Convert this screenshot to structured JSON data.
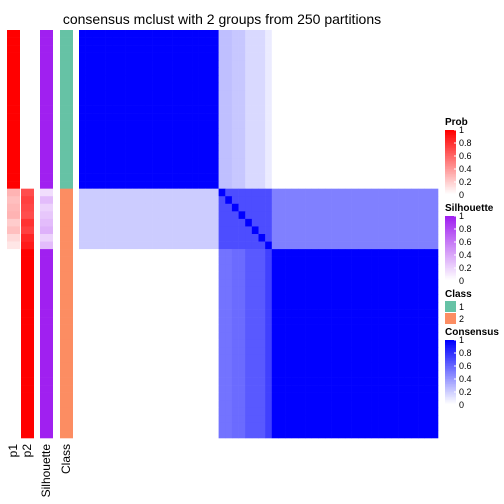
{
  "chart_data": {
    "type": "heatmap",
    "title": "consensus mclust with 2 groups from 250 partitions",
    "annotation_labels": [
      "p1",
      "p2",
      "Silhouette",
      "Class"
    ],
    "colors": {
      "prob_high": "#ff0000",
      "silhouette_high": "#a020f0",
      "class_1": "#66c2a5",
      "class_2": "#fc8d62",
      "consensus_high": "#0000ff"
    },
    "samples": {
      "count": 54,
      "note_order": "samples ordered top-to-bottom"
    },
    "annotations": {
      "p1": [
        1,
        1,
        1,
        1,
        1,
        1,
        1,
        1,
        1,
        1,
        1,
        1,
        1,
        1,
        1,
        1,
        1,
        1,
        1,
        1,
        1,
        0.3,
        0.25,
        0.28,
        0.3,
        0.2,
        0.25,
        0.15,
        0.1,
        0,
        0,
        0,
        0,
        0,
        0,
        0,
        0,
        0,
        0,
        0,
        0,
        0,
        0,
        0,
        0,
        0,
        0,
        0,
        0,
        0,
        0,
        0,
        0,
        0
      ],
      "p2": [
        0,
        0,
        0,
        0,
        0,
        0,
        0,
        0,
        0,
        0,
        0,
        0,
        0,
        0,
        0,
        0,
        0,
        0,
        0,
        0,
        0,
        0.7,
        0.75,
        0.72,
        0.7,
        0.8,
        0.75,
        0.85,
        0.9,
        1,
        1,
        1,
        1,
        1,
        1,
        1,
        1,
        1,
        1,
        1,
        1,
        1,
        1,
        1,
        1,
        1,
        1,
        1,
        1,
        1,
        1,
        1,
        1,
        1
      ],
      "silhouette": [
        1,
        1,
        1,
        1,
        1,
        1,
        1,
        1,
        1,
        1,
        1,
        1,
        1,
        1,
        1,
        1,
        1,
        1,
        1,
        1,
        1,
        0.15,
        0.3,
        0.2,
        0.25,
        0.3,
        0.35,
        0.2,
        0.3,
        1,
        1,
        1,
        1,
        1,
        1,
        1,
        1,
        1,
        1,
        1,
        1,
        1,
        1,
        1,
        1,
        1,
        1,
        1,
        1,
        1,
        1,
        1,
        1,
        1
      ],
      "class": [
        1,
        1,
        1,
        1,
        1,
        1,
        1,
        1,
        1,
        1,
        1,
        1,
        1,
        1,
        1,
        1,
        1,
        1,
        1,
        1,
        1,
        2,
        2,
        2,
        2,
        2,
        2,
        2,
        2,
        2,
        2,
        2,
        2,
        2,
        2,
        2,
        2,
        2,
        2,
        2,
        2,
        2,
        2,
        2,
        2,
        2,
        2,
        2,
        2,
        2,
        2,
        2,
        2,
        2
      ]
    },
    "consensus_blocks": [
      {
        "rows": [
          0,
          20
        ],
        "cols": [
          0,
          20
        ],
        "value": 1
      },
      {
        "rows": [
          0,
          20
        ],
        "cols": [
          21,
          22
        ],
        "value": 0.25
      },
      {
        "rows": [
          0,
          20
        ],
        "cols": [
          23,
          24
        ],
        "value": 0.22
      },
      {
        "rows": [
          0,
          20
        ],
        "cols": [
          25,
          27
        ],
        "value": 0.15
      },
      {
        "rows": [
          0,
          20
        ],
        "cols": [
          28,
          28
        ],
        "value": 0.08
      },
      {
        "rows": [
          21,
          28
        ],
        "cols": [
          0,
          20
        ],
        "value": 0.2
      },
      {
        "rows": [
          21,
          28
        ],
        "cols": [
          29,
          53
        ],
        "value": 0.5
      },
      {
        "rows": [
          21,
          28
        ],
        "cols": [
          21,
          28
        ],
        "value": 0.7
      },
      {
        "rows": [
          29,
          53
        ],
        "cols": [
          21,
          22
        ],
        "value": 0.55
      },
      {
        "rows": [
          29,
          53
        ],
        "cols": [
          23,
          24
        ],
        "value": 0.58
      },
      {
        "rows": [
          29,
          53
        ],
        "cols": [
          25,
          27
        ],
        "value": 0.65
      },
      {
        "rows": [
          29,
          53
        ],
        "cols": [
          28,
          28
        ],
        "value": 0.75
      },
      {
        "rows": [
          29,
          53
        ],
        "cols": [
          29,
          53
        ],
        "value": 1
      }
    ],
    "legends": [
      {
        "title": "Prob",
        "kind": "continuous",
        "color": "#ff0000",
        "ticks": [
          "1",
          "0.8",
          "0.6",
          "0.4",
          "0.2",
          "0"
        ]
      },
      {
        "title": "Silhouette",
        "kind": "continuous",
        "color": "#a020f0",
        "ticks": [
          "1",
          "0.8",
          "0.6",
          "0.4",
          "0.2",
          "0"
        ]
      },
      {
        "title": "Class",
        "kind": "discrete",
        "items": [
          {
            "label": "1",
            "color": "#66c2a5"
          },
          {
            "label": "2",
            "color": "#fc8d62"
          }
        ]
      },
      {
        "title": "Consensus",
        "kind": "continuous",
        "color": "#0000ff",
        "ticks": [
          "1",
          "0.8",
          "0.6",
          "0.4",
          "0.2",
          "0"
        ]
      }
    ]
  }
}
